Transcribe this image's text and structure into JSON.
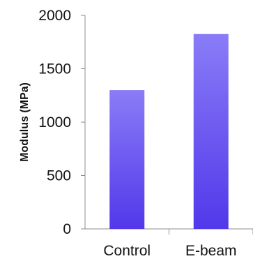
{
  "chart_data": {
    "type": "bar",
    "categories": [
      "Control",
      "E-beam"
    ],
    "values": [
      1300,
      1825
    ],
    "title": "",
    "xlabel": "",
    "ylabel": "Modulus (MPa)",
    "ylim": [
      0,
      2000
    ],
    "yticks": [
      "0",
      "500",
      "1000",
      "1500",
      "2000"
    ],
    "bar_color_top": "#8a7cf7",
    "bar_color_bottom": "#5238ea",
    "grid": false,
    "legend": "none"
  }
}
